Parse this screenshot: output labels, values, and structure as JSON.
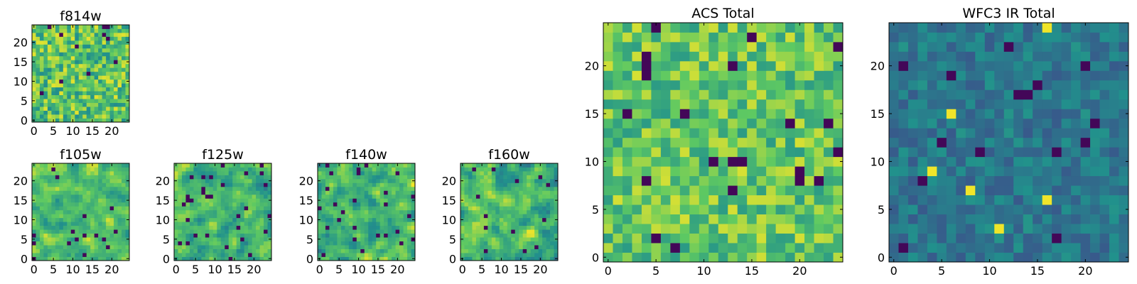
{
  "figure": {
    "colormap": "viridis",
    "colormap_stops": [
      "#440154",
      "#3b528b",
      "#21918c",
      "#5ec962",
      "#fde725"
    ]
  },
  "chart_data": [
    {
      "type": "heatmap",
      "title": "f814w",
      "grid_size": 25,
      "xlim": [
        -0.5,
        24.5
      ],
      "ylim": [
        -0.5,
        24.5
      ],
      "xticks": [
        0,
        5,
        10,
        15,
        20
      ],
      "yticks": [
        0,
        5,
        10,
        15,
        20
      ],
      "seed": 11,
      "base": 0.72,
      "spread": 0.24,
      "smooth": 0,
      "dark_fraction": 0.02
    },
    {
      "type": "heatmap",
      "title": "f105w",
      "grid_size": 25,
      "xlim": [
        -0.5,
        24.5
      ],
      "ylim": [
        -0.5,
        24.5
      ],
      "xticks": [
        0,
        5,
        10,
        15,
        20
      ],
      "yticks": [
        0,
        5,
        10,
        15,
        20
      ],
      "seed": 23,
      "base": 0.7,
      "spread": 0.3,
      "smooth": 1,
      "dark_fraction": 0.02
    },
    {
      "type": "heatmap",
      "title": "f125w",
      "grid_size": 25,
      "xlim": [
        -0.5,
        24.5
      ],
      "ylim": [
        -0.5,
        24.5
      ],
      "xticks": [
        0,
        5,
        10,
        15,
        20
      ],
      "yticks": [
        0,
        5,
        10,
        15,
        20
      ],
      "seed": 37,
      "base": 0.66,
      "spread": 0.32,
      "smooth": 1,
      "dark_fraction": 0.05
    },
    {
      "type": "heatmap",
      "title": "f140w",
      "grid_size": 25,
      "xlim": [
        -0.5,
        24.5
      ],
      "ylim": [
        -0.5,
        24.5
      ],
      "xticks": [
        0,
        5,
        10,
        15,
        20
      ],
      "yticks": [
        0,
        5,
        10,
        15,
        20
      ],
      "seed": 41,
      "base": 0.66,
      "spread": 0.33,
      "smooth": 1,
      "dark_fraction": 0.05
    },
    {
      "type": "heatmap",
      "title": "f160w",
      "grid_size": 25,
      "xlim": [
        -0.5,
        24.5
      ],
      "ylim": [
        -0.5,
        24.5
      ],
      "xticks": [
        0,
        5,
        10,
        15,
        20
      ],
      "yticks": [
        0,
        5,
        10,
        15,
        20
      ],
      "seed": 53,
      "base": 0.68,
      "spread": 0.32,
      "smooth": 1,
      "dark_fraction": 0.03
    },
    {
      "type": "heatmap",
      "title": "ACS Total",
      "grid_size": 25,
      "xlim": [
        -0.5,
        24.5
      ],
      "ylim": [
        -0.5,
        24.5
      ],
      "xticks": [
        0,
        5,
        10,
        15,
        20
      ],
      "yticks": [
        0,
        5,
        10,
        15,
        20
      ],
      "seed": 67,
      "base": 0.74,
      "spread": 0.2,
      "smooth": 0,
      "dark_fraction": 0.025
    },
    {
      "type": "heatmap",
      "title": "WFC3 IR Total",
      "grid_size": 25,
      "xlim": [
        -0.5,
        24.5
      ],
      "ylim": [
        -0.5,
        24.5
      ],
      "xticks": [
        0,
        5,
        10,
        15,
        20
      ],
      "yticks": [
        0,
        5,
        10,
        15,
        20
      ],
      "seed": 79,
      "base": 0.4,
      "spread": 0.12,
      "smooth": 0,
      "dark_fraction": 0.03,
      "bright_fraction": 0.012
    }
  ]
}
